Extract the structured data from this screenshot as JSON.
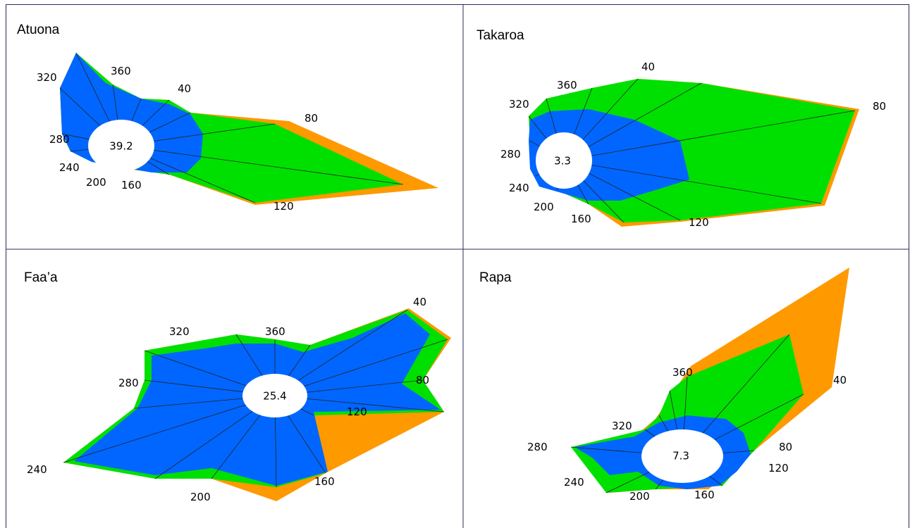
{
  "panels": [
    {
      "title": "Atuona",
      "center": "39.2",
      "labels": [
        "320",
        "360",
        "40",
        "80",
        "280",
        "240",
        "200",
        "160",
        "120"
      ]
    },
    {
      "title": "Takaroa",
      "center": "3.3",
      "labels": [
        "320",
        "360",
        "40",
        "80",
        "280",
        "240",
        "200",
        "160",
        "120"
      ]
    },
    {
      "title": "Faa’a",
      "center": "25.4",
      "labels": [
        "320",
        "360",
        "40",
        "280",
        "80",
        "120",
        "240",
        "200",
        "160"
      ]
    },
    {
      "title": "Rapa",
      "center": "7.3",
      "labels": [
        "360",
        "40",
        "320",
        "280",
        "80",
        "120",
        "240",
        "200",
        "160"
      ]
    }
  ]
}
